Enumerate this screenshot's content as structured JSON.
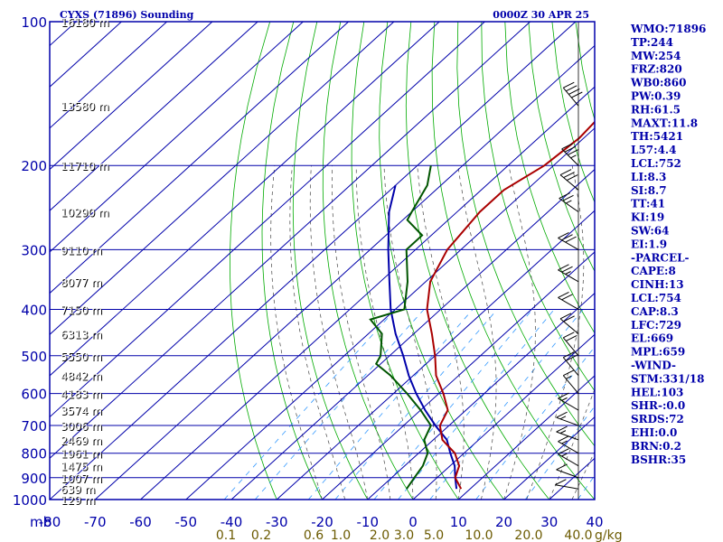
{
  "title_left": "CYXS (71896) Sounding",
  "title_right": "0000Z 30 APR 25",
  "chart_data": {
    "type": "skew-t",
    "pressure_unit": "mb",
    "pressure_levels": [
      100,
      200,
      300,
      400,
      500,
      600,
      700,
      800,
      900,
      1000
    ],
    "temp_ticks": [
      -80,
      -70,
      -60,
      -50,
      -40,
      -30,
      -20,
      -10,
      0,
      10,
      20,
      30,
      40
    ],
    "mixing_ratio_unit": "g/kg",
    "mixing_ratio_ticks": [
      "0.1",
      "0.2",
      "0.6",
      "1.0",
      "2.0",
      "3.0",
      "5.0",
      "10.0",
      "20.0",
      "40.0"
    ],
    "height_labels": [
      {
        "p": 100,
        "label": "16180 m"
      },
      {
        "p": 150,
        "label": "13580 m"
      },
      {
        "p": 200,
        "label": "11710 m"
      },
      {
        "p": 250,
        "label": "10290 m"
      },
      {
        "p": 300,
        "label": "9110 m"
      },
      {
        "p": 350,
        "label": "8077 m"
      },
      {
        "p": 400,
        "label": "7150 m"
      },
      {
        "p": 450,
        "label": "6313 m"
      },
      {
        "p": 500,
        "label": "5550 m"
      },
      {
        "p": 550,
        "label": "4842 m"
      },
      {
        "p": 600,
        "label": "4183 m"
      },
      {
        "p": 650,
        "label": "3574 m"
      },
      {
        "p": 700,
        "label": "3006 m"
      },
      {
        "p": 750,
        "label": "2469 m"
      },
      {
        "p": 800,
        "label": "1961 m"
      },
      {
        "p": 850,
        "label": "1475 m"
      },
      {
        "p": 900,
        "label": "1007 m"
      },
      {
        "p": 950,
        "label": "639 m"
      },
      {
        "p": 1000,
        "label": "129 m"
      }
    ],
    "temperature_profile": [
      [
        950,
        8
      ],
      [
        900,
        4
      ],
      [
        850,
        2
      ],
      [
        800,
        -2
      ],
      [
        750,
        -8
      ],
      [
        700,
        -12
      ],
      [
        650,
        -14
      ],
      [
        600,
        -19
      ],
      [
        550,
        -25
      ],
      [
        500,
        -30
      ],
      [
        450,
        -36
      ],
      [
        400,
        -43
      ],
      [
        350,
        -49
      ],
      [
        300,
        -53
      ],
      [
        250,
        -55
      ],
      [
        225,
        -55
      ],
      [
        200,
        -52
      ],
      [
        175,
        -51
      ],
      [
        150,
        -52
      ],
      [
        130,
        -52
      ],
      [
        115,
        -55
      ],
      [
        100,
        -54
      ]
    ],
    "dewpoint_profile": [
      [
        950,
        -4
      ],
      [
        900,
        -5
      ],
      [
        850,
        -6
      ],
      [
        800,
        -8
      ],
      [
        750,
        -12
      ],
      [
        700,
        -14
      ],
      [
        650,
        -20
      ],
      [
        600,
        -27
      ],
      [
        550,
        -35
      ],
      [
        520,
        -41
      ],
      [
        500,
        -42
      ],
      [
        450,
        -47
      ],
      [
        420,
        -53
      ],
      [
        400,
        -48
      ],
      [
        350,
        -54
      ],
      [
        300,
        -62
      ],
      [
        280,
        -62
      ],
      [
        260,
        -69
      ],
      [
        250,
        -70
      ],
      [
        220,
        -73
      ],
      [
        200,
        -77
      ]
    ],
    "parcel_profile": [
      [
        950,
        7
      ],
      [
        900,
        4
      ],
      [
        850,
        1
      ],
      [
        800,
        -3
      ],
      [
        750,
        -7
      ],
      [
        700,
        -13
      ],
      [
        650,
        -19
      ],
      [
        600,
        -25
      ],
      [
        550,
        -31
      ],
      [
        500,
        -37
      ],
      [
        450,
        -44
      ],
      [
        400,
        -51
      ],
      [
        350,
        -58
      ],
      [
        300,
        -66
      ],
      [
        250,
        -75
      ],
      [
        220,
        -80
      ]
    ],
    "wind_barbs": [
      {
        "p": 150,
        "dir": 320,
        "spd": 40
      },
      {
        "p": 200,
        "dir": 315,
        "spd": 35
      },
      {
        "p": 225,
        "dir": 310,
        "spd": 30
      },
      {
        "p": 250,
        "dir": 305,
        "spd": 25
      },
      {
        "p": 300,
        "dir": 300,
        "spd": 30
      },
      {
        "p": 350,
        "dir": 300,
        "spd": 25
      },
      {
        "p": 400,
        "dir": 300,
        "spd": 20
      },
      {
        "p": 450,
        "dir": 310,
        "spd": 20
      },
      {
        "p": 500,
        "dir": 320,
        "spd": 20
      },
      {
        "p": 550,
        "dir": 320,
        "spd": 20
      },
      {
        "p": 600,
        "dir": 320,
        "spd": 15
      },
      {
        "p": 650,
        "dir": 300,
        "spd": 15
      },
      {
        "p": 700,
        "dir": 290,
        "spd": 15
      },
      {
        "p": 750,
        "dir": 290,
        "spd": 15
      },
      {
        "p": 800,
        "dir": 300,
        "spd": 15
      },
      {
        "p": 850,
        "dir": 300,
        "spd": 15
      },
      {
        "p": 900,
        "dir": 290,
        "spd": 10
      },
      {
        "p": 950,
        "dir": 280,
        "spd": 10
      }
    ]
  },
  "stats": [
    "WMO:71896",
    "TP:244",
    "MW:254",
    "FRZ:820",
    "WB0:860",
    "PW:0.39",
    "RH:61.5",
    "MAXT:11.8",
    "TH:5421",
    "L57:4.4",
    "LCL:752",
    "LI:8.3",
    "SI:8.7",
    "TT:41",
    "KI:19",
    "SW:64",
    "EI:1.9",
    "-PARCEL-",
    "CAPE:8",
    "CINH:13",
    "LCL:754",
    "CAP:8.3",
    "LFC:729",
    "EL:669",
    "MPL:659",
    "-WIND-",
    "STM:331/18",
    "HEL:103",
    "SHR-:0.0",
    "SRDS:72",
    "EHI:0.0",
    "BRN:0.2",
    "BSHR:35"
  ],
  "colors": {
    "frame": "#0000aa",
    "isotherm": "#0000aa",
    "dry_adiabat": "#00aa00",
    "moist_adiabat": "#444444",
    "mixing_ratio": "#3399ff",
    "temperature": "#aa0000",
    "dewpoint": "#005500",
    "parcel": "#0000aa",
    "wind_barb": "#000000"
  }
}
